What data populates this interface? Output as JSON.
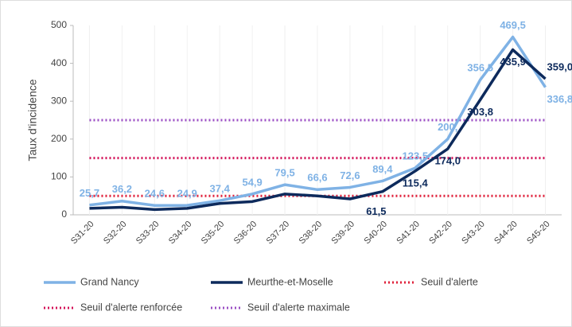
{
  "chart_data": {
    "type": "line",
    "y_label": "Taux d'incidence",
    "categories": [
      "S31-20",
      "S32-20",
      "S33-20",
      "S34-20",
      "S35-20",
      "S36-20",
      "S37-20",
      "S38-20",
      "S39-20",
      "S40-20",
      "S41-20",
      "S42-20",
      "S43-20",
      "S44-20",
      "S45-20"
    ],
    "ylim": [
      0,
      500
    ],
    "yticks": [
      0,
      100,
      200,
      300,
      400,
      500
    ],
    "legend": "bottom",
    "series": [
      {
        "name": "Grand Nancy",
        "color": "#7fb2e5",
        "style": "solid",
        "values": [
          25.7,
          36.2,
          24.6,
          24.9,
          37.4,
          54.9,
          79.5,
          66.6,
          72.6,
          89.4,
          123.5,
          200,
          356.5,
          469.5,
          336.8
        ],
        "value_labels": [
          "25,7",
          "36,2",
          "24,6",
          "24,9",
          "37,4",
          "54,9",
          "79,5",
          "66,6",
          "72,6",
          "89,4",
          "123,5",
          "200,",
          "356,5",
          "469,5",
          "336,8"
        ]
      },
      {
        "name": "Meurthe-et-Moselle",
        "color": "#0d2a5c",
        "style": "solid",
        "values": [
          17,
          20,
          14,
          17,
          30,
          35,
          55,
          50,
          42,
          61.5,
          115.4,
          174.0,
          303.8,
          435.9,
          359.0
        ],
        "value_labels": [
          null,
          null,
          null,
          null,
          null,
          null,
          null,
          null,
          null,
          "61,5",
          "115,4",
          "174,0",
          "303,8",
          "435,9",
          "359,0"
        ]
      },
      {
        "name": "Seuil d'alerte",
        "color": "#e0203a",
        "style": "dotted",
        "values": [
          50,
          50,
          50,
          50,
          50,
          50,
          50,
          50,
          50,
          50,
          50,
          50,
          50,
          50,
          50
        ]
      },
      {
        "name": "Seuil d'alerte renforcée",
        "color": "#d4145a",
        "style": "dotted",
        "values": [
          150,
          150,
          150,
          150,
          150,
          150,
          150,
          150,
          150,
          150,
          150,
          150,
          150,
          150,
          150
        ]
      },
      {
        "name": "Seuil d'alerte maximale",
        "color": "#9b4fc4",
        "style": "dotted",
        "values": [
          250,
          250,
          250,
          250,
          250,
          250,
          250,
          250,
          250,
          250,
          250,
          250,
          250,
          250,
          250
        ]
      }
    ]
  }
}
